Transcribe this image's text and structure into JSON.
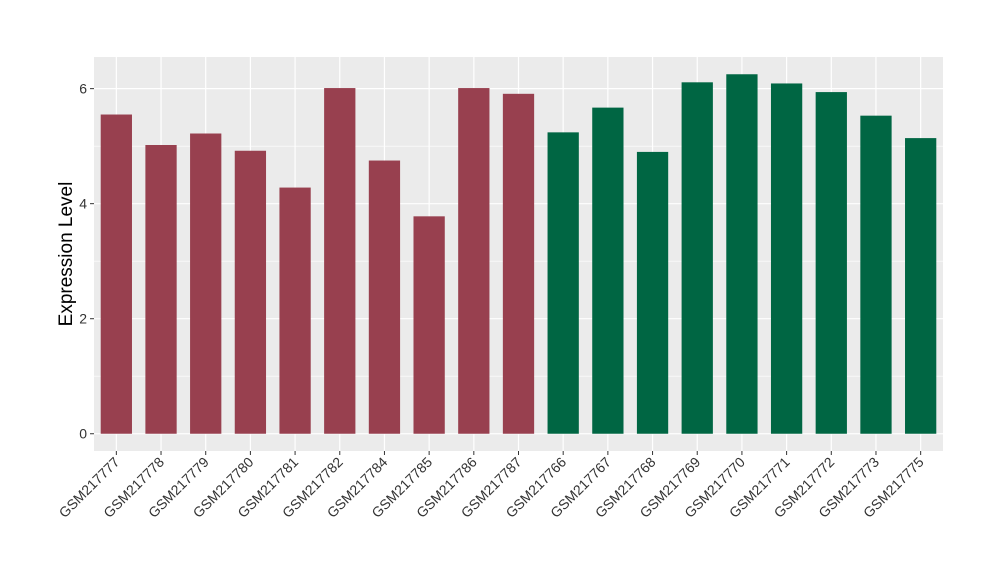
{
  "chart_data": {
    "type": "bar",
    "ylabel": "Expression Level",
    "xlabel": "",
    "ylim": [
      -0.3,
      6.55
    ],
    "yticks": [
      0,
      2,
      4,
      6
    ],
    "grid": true,
    "categories": [
      "GSM217777",
      "GSM217778",
      "GSM217779",
      "GSM217780",
      "GSM217781",
      "GSM217782",
      "GSM217784",
      "GSM217785",
      "GSM217786",
      "GSM217787",
      "GSM217766",
      "GSM217767",
      "GSM217768",
      "GSM217769",
      "GSM217770",
      "GSM217771",
      "GSM217772",
      "GSM217773",
      "GSM217775"
    ],
    "values": [
      5.55,
      5.02,
      5.22,
      4.92,
      4.28,
      6.01,
      4.75,
      3.78,
      6.01,
      5.91,
      5.24,
      5.67,
      4.9,
      6.11,
      6.25,
      6.09,
      5.94,
      5.53,
      5.14
    ],
    "groups": [
      0,
      0,
      0,
      0,
      0,
      0,
      0,
      0,
      0,
      0,
      1,
      1,
      1,
      1,
      1,
      1,
      1,
      1,
      1
    ],
    "colors": [
      "#98404F",
      "#006643"
    ],
    "panel_background": "#EBEBEB",
    "grid_color": "#FFFFFF"
  }
}
